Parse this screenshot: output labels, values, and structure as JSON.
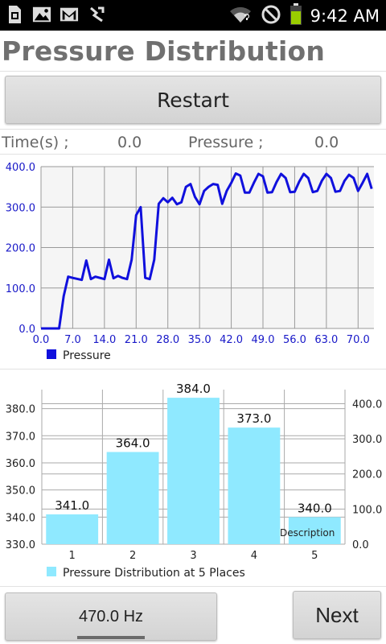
{
  "status_bar": {
    "time": "9:42 AM",
    "icons": [
      "sim-card-icon",
      "image-icon",
      "gmail-icon",
      "usb-debug-icon",
      "wifi-icon",
      "do-not-disturb-icon",
      "battery-icon"
    ]
  },
  "title": "Pressure Distribution",
  "restart_label": "Restart",
  "readout": {
    "time_label": "Time(s) ;",
    "time_value": "0.0",
    "pressure_label": "Pressure ;",
    "pressure_value": "0.0"
  },
  "chart_data": [
    {
      "type": "line",
      "title": "",
      "xlabel": "",
      "ylabel": "",
      "xlim": [
        0,
        73.5
      ],
      "ylim": [
        0,
        400
      ],
      "x_ticks": [
        "0.0",
        "7.0",
        "14.0",
        "21.0",
        "28.0",
        "35.0",
        "42.0",
        "49.0",
        "56.0",
        "63.0",
        "70.0"
      ],
      "y_ticks": [
        "0.0",
        "100.0",
        "200.0",
        "300.0",
        "400.0"
      ],
      "grid": true,
      "line_color": "#1010dd",
      "legend": "bottom-left",
      "series": [
        {
          "name": "Pressure",
          "x": [
            0,
            4,
            5,
            6,
            7,
            9,
            10,
            11,
            12,
            14,
            15,
            16,
            17,
            18,
            19,
            20,
            21,
            22,
            23,
            24,
            25,
            26,
            27,
            28,
            29,
            30,
            31,
            32,
            33,
            34,
            35,
            36,
            37,
            38,
            39,
            40,
            41,
            42,
            43,
            44,
            45,
            46,
            47,
            48,
            49,
            50,
            51,
            52,
            53,
            54,
            55,
            56,
            57,
            58,
            59,
            60,
            61,
            62,
            63,
            64,
            65,
            66,
            67,
            68,
            69,
            70,
            71,
            72,
            73
          ],
          "y": [
            0,
            0,
            80,
            128,
            125,
            120,
            168,
            122,
            128,
            122,
            170,
            124,
            130,
            125,
            122,
            170,
            280,
            300,
            125,
            122,
            170,
            308,
            322,
            312,
            323,
            307,
            312,
            350,
            357,
            325,
            307,
            340,
            350,
            357,
            355,
            308,
            340,
            360,
            383,
            378,
            336,
            336,
            360,
            382,
            376,
            336,
            337,
            362,
            382,
            372,
            337,
            338,
            363,
            382,
            372,
            337,
            340,
            365,
            382,
            372,
            338,
            340,
            365,
            380,
            372,
            340,
            360,
            382,
            345
          ]
        }
      ]
    },
    {
      "type": "bar",
      "title": "",
      "xlabel": "",
      "ylabel": "",
      "categories": [
        "1",
        "2",
        "3",
        "4",
        "5"
      ],
      "ylim": [
        330,
        387
      ],
      "ylim_right": [
        0,
        440
      ],
      "y_ticks": [
        "330.0",
        "340.0",
        "350.0",
        "360.0",
        "370.0",
        "380.0"
      ],
      "y_ticks_right": [
        "0.0",
        "100.0",
        "200.0",
        "300.0",
        "400.0"
      ],
      "grid": true,
      "bar_color": "#8fe9ff",
      "legend": "bottom-left",
      "annotation": "Description",
      "series": [
        {
          "name": "Pressure Distribution at 5 Places",
          "values": [
            341.0,
            364.0,
            384.0,
            373.0,
            340.0
          ],
          "value_labels": [
            "341.0",
            "364.0",
            "384.0",
            "373.0",
            "340.0"
          ]
        }
      ]
    }
  ],
  "frequency_label": "470.0 Hz",
  "next_label": "Next"
}
